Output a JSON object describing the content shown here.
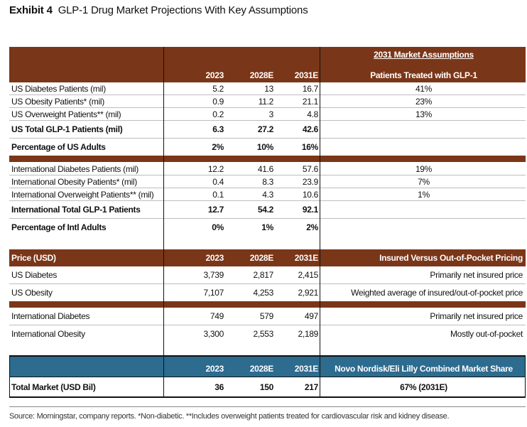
{
  "title": {
    "exhibit": "Exhibit 4",
    "text": "GLP-1 Drug Market Projections With Key Assumptions"
  },
  "years": {
    "y1": "2023",
    "y2": "2028E",
    "y3": "2031E"
  },
  "assumptions_header": {
    "title": "2031 Market Assumptions",
    "sub": "Patients Treated with GLP-1"
  },
  "us_rows": [
    {
      "label": "US Diabetes Patients (mil)",
      "v1": "5.2",
      "v2": "13",
      "v3": "16.7",
      "a": "41%"
    },
    {
      "label": "US Obesity Patients* (mil)",
      "v1": "0.9",
      "v2": "11.2",
      "v3": "21.1",
      "a": "23%"
    },
    {
      "label": "US Overweight Patients** (mil)",
      "v1": "0.2",
      "v2": "3",
      "v3": "4.8",
      "a": "13%"
    }
  ],
  "us_total": {
    "label": "US Total GLP-1 Patients (mil)",
    "v1": "6.3",
    "v2": "27.2",
    "v3": "42.6"
  },
  "us_pct": {
    "label": "Percentage of US Adults",
    "v1": "2%",
    "v2": "10%",
    "v3": "16%"
  },
  "intl_rows": [
    {
      "label": "International Diabetes Patients (mil)",
      "v1": "12.2",
      "v2": "41.6",
      "v3": "57.6",
      "a": "19%"
    },
    {
      "label": "International Obesity Patients* (mil)",
      "v1": "0.4",
      "v2": "8.3",
      "v3": "23.9",
      "a": "7%"
    },
    {
      "label": "International Overweight Patients** (mil)",
      "v1": "0.1",
      "v2": "4.3",
      "v3": "10.6",
      "a": "1%"
    }
  ],
  "intl_total": {
    "label": "International Total GLP-1 Patients",
    "v1": "12.7",
    "v2": "54.2",
    "v3": "92.1"
  },
  "intl_pct": {
    "label": "Percentage of Intl Adults",
    "v1": "0%",
    "v2": "1%",
    "v3": "2%"
  },
  "price_header": {
    "label": "Price (USD)",
    "y1": "2023",
    "y2": "2028E",
    "y3": "2031E",
    "a": "Insured Versus Out-of-Pocket Pricing"
  },
  "price_rows": [
    {
      "label": "US Diabetes",
      "v1": "3,739",
      "v2": "2,817",
      "v3": "2,415",
      "a": "Primarily net insured price"
    },
    {
      "label": "US Obesity",
      "v1": "7,107",
      "v2": "4,253",
      "v3": "2,921",
      "a": "Weighted average of insured/out-of-pocket price"
    },
    {
      "label": "International Diabetes",
      "v1": "749",
      "v2": "579",
      "v3": "497",
      "a": "Primarily net insured price"
    },
    {
      "label": "International Obesity",
      "v1": "3,300",
      "v2": "2,553",
      "v3": "2,189",
      "a": "Mostly out-of-pocket"
    }
  ],
  "market_header": {
    "y1": "2023",
    "y2": "2028E",
    "y3": "2031E",
    "a": "Novo Nordisk/Eli Lilly Combined Market Share"
  },
  "market_row": {
    "label": "Total Market (USD Bil)",
    "v1": "36",
    "v2": "150",
    "v3": "217",
    "a": "67% (2031E)"
  },
  "source": "Source: Morningstar, company reports. *Non-diabetic. **Includes overweight patients treated for cardiovascular risk and kidney disease.",
  "colors": {
    "brown": "#7a3618",
    "blue": "#2d6b8f"
  }
}
